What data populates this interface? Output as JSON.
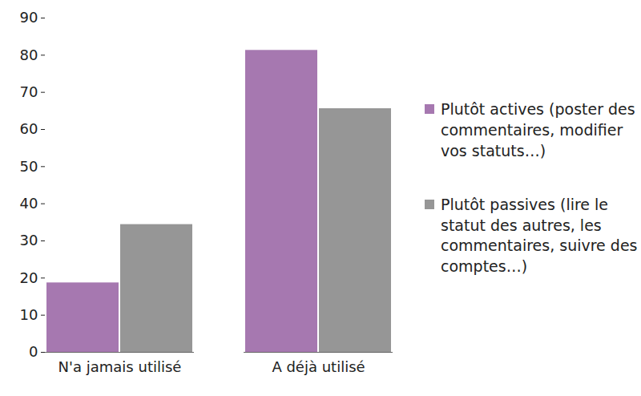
{
  "chart_data": {
    "type": "bar",
    "categories": [
      "N'a jamais utilisé",
      "A déjà utilisé"
    ],
    "series": [
      {
        "name": "Plutôt actives (poster des commentaires, modifier vos statuts…)",
        "color": "#a678b0",
        "values": [
          18.7,
          81.3
        ]
      },
      {
        "name": "Plutôt passives (lire le statut des autres, les commentaires, suivre des comptes…)",
        "color": "#969696",
        "values": [
          34.4,
          65.6
        ]
      }
    ],
    "ylim": [
      0,
      90
    ],
    "yticks": [
      0,
      10,
      20,
      30,
      40,
      50,
      60,
      70,
      80,
      90
    ],
    "grid": false,
    "legend": "right"
  }
}
